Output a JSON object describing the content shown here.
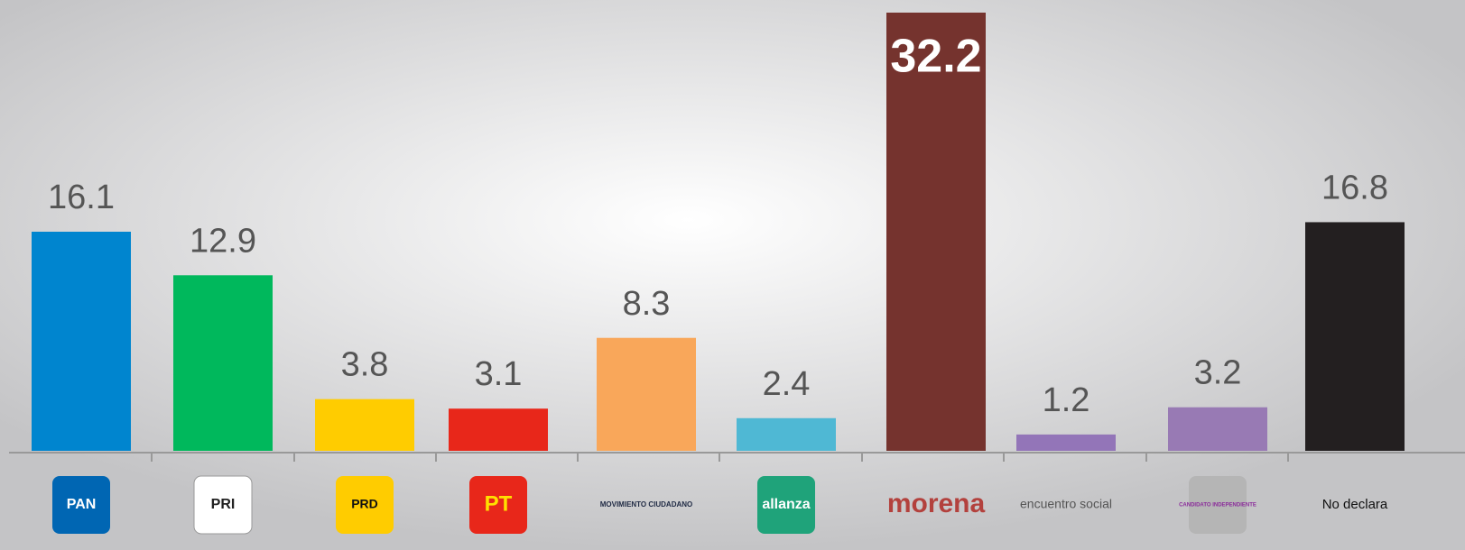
{
  "chart_data": {
    "type": "bar",
    "categories": [
      "PAN",
      "PRI",
      "PRD",
      "PT",
      "MOVIMIENTO CIUDADANO",
      "allanza",
      "morena",
      "encuentro social",
      "CANDIDATO INDEPENDIENTE",
      "No declara"
    ],
    "values": [
      16.1,
      12.9,
      3.8,
      3.1,
      8.3,
      2.4,
      32.2,
      1.2,
      3.2,
      16.8
    ],
    "colors": [
      "#0085cf",
      "#00b85c",
      "#ffcc00",
      "#e8271a",
      "#f9a75a",
      "#4fb8d4",
      "#75332e",
      "#9375b8",
      "#987ab4",
      "#231f20"
    ]
  }
}
